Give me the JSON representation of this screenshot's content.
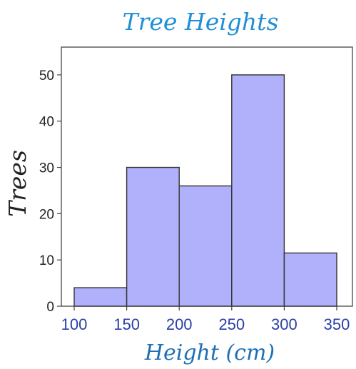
{
  "chart_data": {
    "type": "bar",
    "title": "Tree Heights",
    "xlabel": "Height (cm)",
    "ylabel": "Trees",
    "bins": [
      {
        "start": 100,
        "end": 150,
        "value": 4
      },
      {
        "start": 150,
        "end": 200,
        "value": 30
      },
      {
        "start": 200,
        "end": 250,
        "value": 26
      },
      {
        "start": 250,
        "end": 300,
        "value": 50
      },
      {
        "start": 300,
        "end": 350,
        "value": 11.5
      }
    ],
    "x_ticks": [
      "100",
      "150",
      "200",
      "250",
      "300",
      "350"
    ],
    "y_ticks": [
      "0",
      "10",
      "20",
      "30",
      "40",
      "50"
    ],
    "xlim": [
      100,
      350
    ],
    "ylim": [
      0,
      56
    ],
    "grid": false,
    "bar_color": "#b0b0fb",
    "bar_edge_color": "#333333"
  }
}
